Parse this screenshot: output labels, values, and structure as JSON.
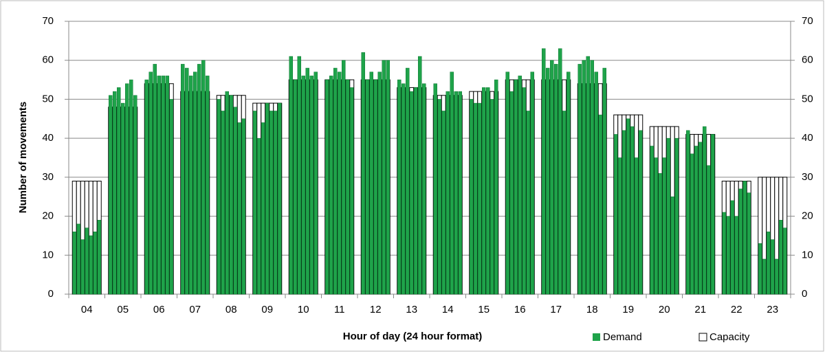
{
  "chart_data": {
    "type": "grouped-bar",
    "x_label": "Hour of day (24 hour format)",
    "y_label": "Number of movements",
    "categories": [
      "04",
      "05",
      "06",
      "07",
      "08",
      "09",
      "10",
      "11",
      "12",
      "13",
      "14",
      "15",
      "16",
      "17",
      "18",
      "19",
      "20",
      "21",
      "22",
      "23"
    ],
    "series": [
      {
        "name": "Demand",
        "color": "#1fa34a",
        "values": [
          [
            16,
            18,
            14,
            17,
            15,
            16,
            19
          ],
          [
            51,
            52,
            53,
            49,
            54,
            55,
            51
          ],
          [
            55,
            57,
            59,
            56,
            56,
            56,
            50
          ],
          [
            59,
            58,
            56,
            57,
            59,
            60,
            56
          ],
          [
            50,
            47,
            52,
            51,
            48,
            44,
            45
          ],
          [
            47,
            40,
            44,
            49,
            47,
            47,
            49
          ],
          [
            61,
            55,
            61,
            56,
            58,
            56,
            57
          ],
          [
            55,
            56,
            58,
            57,
            60,
            55,
            53
          ],
          [
            62,
            55,
            57,
            55,
            57,
            60,
            60
          ],
          [
            55,
            54,
            58,
            52,
            53,
            61,
            54
          ],
          [
            54,
            50,
            47,
            52,
            57,
            52,
            52
          ],
          [
            50,
            49,
            49,
            53,
            53,
            50,
            55
          ],
          [
            57,
            52,
            55,
            56,
            53,
            47,
            57
          ],
          [
            63,
            58,
            60,
            59,
            63,
            47,
            57
          ],
          [
            59,
            60,
            61,
            60,
            57,
            46,
            58
          ],
          [
            41,
            35,
            42,
            45,
            43,
            35,
            42
          ],
          [
            38,
            35,
            31,
            35,
            40,
            25,
            40
          ],
          [
            42,
            36,
            38,
            39,
            43,
            33,
            41
          ],
          [
            21,
            20,
            24,
            20,
            27,
            29,
            26
          ],
          [
            13,
            9,
            16,
            14,
            9,
            19,
            17
          ]
        ]
      },
      {
        "name": "Capacity",
        "color": "#ffffff",
        "values": [
          29,
          48,
          54,
          52,
          51,
          49,
          55,
          55,
          55,
          53,
          51,
          52,
          55,
          55,
          54,
          46,
          43,
          41,
          29,
          30
        ]
      }
    ],
    "ylim": [
      0,
      70
    ],
    "yticks": [
      0,
      10,
      20,
      30,
      40,
      50,
      60,
      70
    ],
    "y2lim": [
      0,
      70
    ],
    "y2ticks": [
      0,
      10,
      20,
      30,
      40,
      50,
      60,
      70
    ],
    "grid": true,
    "legend": "bottom-right"
  }
}
